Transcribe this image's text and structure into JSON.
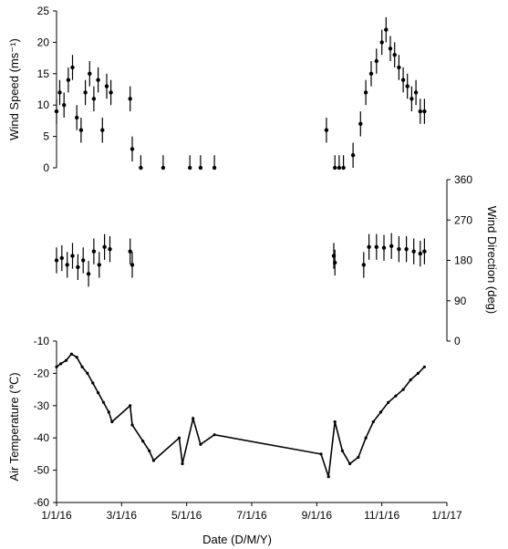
{
  "chart_data": [
    {
      "type": "scatter",
      "panel": "wind-speed",
      "ylabel": "Wind Speed (ms⁻¹)",
      "ylim": [
        0,
        25
      ],
      "yticks": [
        "25",
        "20",
        "15",
        "10",
        "5",
        "0"
      ],
      "series": [
        {
          "x": [
            "2016-01-01",
            "2016-01-04",
            "2016-01-08",
            "2016-01-12",
            "2016-01-16",
            "2016-01-20",
            "2016-01-24",
            "2016-01-28",
            "2016-02-01",
            "2016-02-05",
            "2016-02-09",
            "2016-02-13",
            "2016-02-17",
            "2016-02-21",
            "2016-03-10",
            "2016-03-12",
            "2016-03-20",
            "2016-04-10",
            "2016-05-05",
            "2016-05-15",
            "2016-05-28",
            "2016-09-10",
            "2016-09-18",
            "2016-09-22",
            "2016-09-26",
            "2016-10-05",
            "2016-10-12",
            "2016-10-17",
            "2016-10-22",
            "2016-10-27",
            "2016-11-01",
            "2016-11-05",
            "2016-11-09",
            "2016-11-13",
            "2016-11-17",
            "2016-11-21",
            "2016-11-25",
            "2016-11-29",
            "2016-12-03",
            "2016-12-07",
            "2016-12-11"
          ],
          "values": [
            9,
            12,
            10,
            14,
            16,
            8,
            6,
            12,
            15,
            11,
            14,
            6,
            13,
            12,
            11,
            3,
            0,
            0,
            0,
            0,
            0,
            6,
            0,
            0,
            0,
            2,
            7,
            12,
            15,
            17,
            20,
            22,
            19,
            18,
            16,
            14,
            13,
            11,
            12,
            9,
            9
          ]
        }
      ]
    },
    {
      "type": "scatter",
      "panel": "wind-direction",
      "ylabel": "Wind Direction (deg)",
      "ylim": [
        0,
        360
      ],
      "yticks": [
        "360",
        "270",
        "180",
        "90",
        "0"
      ],
      "series": [
        {
          "x": [
            "2016-01-01",
            "2016-01-06",
            "2016-01-11",
            "2016-01-16",
            "2016-01-21",
            "2016-01-26",
            "2016-01-31",
            "2016-02-05",
            "2016-02-10",
            "2016-02-15",
            "2016-02-20",
            "2016-03-10",
            "2016-03-12",
            "2016-09-17",
            "2016-09-18",
            "2016-10-15",
            "2016-10-20",
            "2016-10-27",
            "2016-11-03",
            "2016-11-10",
            "2016-11-17",
            "2016-11-24",
            "2016-12-01",
            "2016-12-07",
            "2016-12-11"
          ],
          "values": [
            180,
            185,
            170,
            190,
            165,
            180,
            150,
            200,
            170,
            210,
            205,
            200,
            170,
            190,
            175,
            170,
            210,
            210,
            208,
            212,
            205,
            205,
            200,
            195,
            200
          ]
        }
      ]
    },
    {
      "type": "line",
      "panel": "air-temperature",
      "ylabel": "Air Temperature (℃)",
      "yticks_left": [
        "-10",
        "-20",
        "-30",
        "-40",
        "-50",
        "-60"
      ],
      "ylim": [
        -60,
        -10
      ],
      "xlabel": "Date (D/M/Y)",
      "xticks": [
        "1/1/16",
        "3/1/16",
        "5/1/16",
        "7/1/16",
        "9/1/16",
        "11/1/16",
        "1/1/17"
      ],
      "series": [
        {
          "x": [
            "2016-01-01",
            "2016-01-05",
            "2016-01-10",
            "2016-01-15",
            "2016-01-20",
            "2016-01-25",
            "2016-01-30",
            "2016-02-04",
            "2016-02-09",
            "2016-02-14",
            "2016-02-19",
            "2016-02-22",
            "2016-03-10",
            "2016-03-12",
            "2016-03-22",
            "2016-03-28",
            "2016-04-01",
            "2016-04-25",
            "2016-04-28",
            "2016-05-08",
            "2016-05-15",
            "2016-05-28",
            "2016-09-05",
            "2016-09-12",
            "2016-09-18",
            "2016-09-25",
            "2016-10-02",
            "2016-10-10",
            "2016-10-17",
            "2016-10-24",
            "2016-10-31",
            "2016-11-07",
            "2016-11-14",
            "2016-11-21",
            "2016-11-28",
            "2016-12-05",
            "2016-12-11"
          ],
          "values": [
            -18,
            -17,
            -16,
            -14,
            -15,
            -18,
            -20,
            -23,
            -26,
            -29,
            -32,
            -35,
            -30,
            -36,
            -41,
            -44,
            -47,
            -40,
            -48,
            -34,
            -42,
            -39,
            -45,
            -52,
            -35,
            -44,
            -48,
            -46,
            -40,
            -35,
            -32,
            -29,
            -27,
            -25,
            -22,
            -20,
            -18
          ]
        }
      ]
    }
  ]
}
